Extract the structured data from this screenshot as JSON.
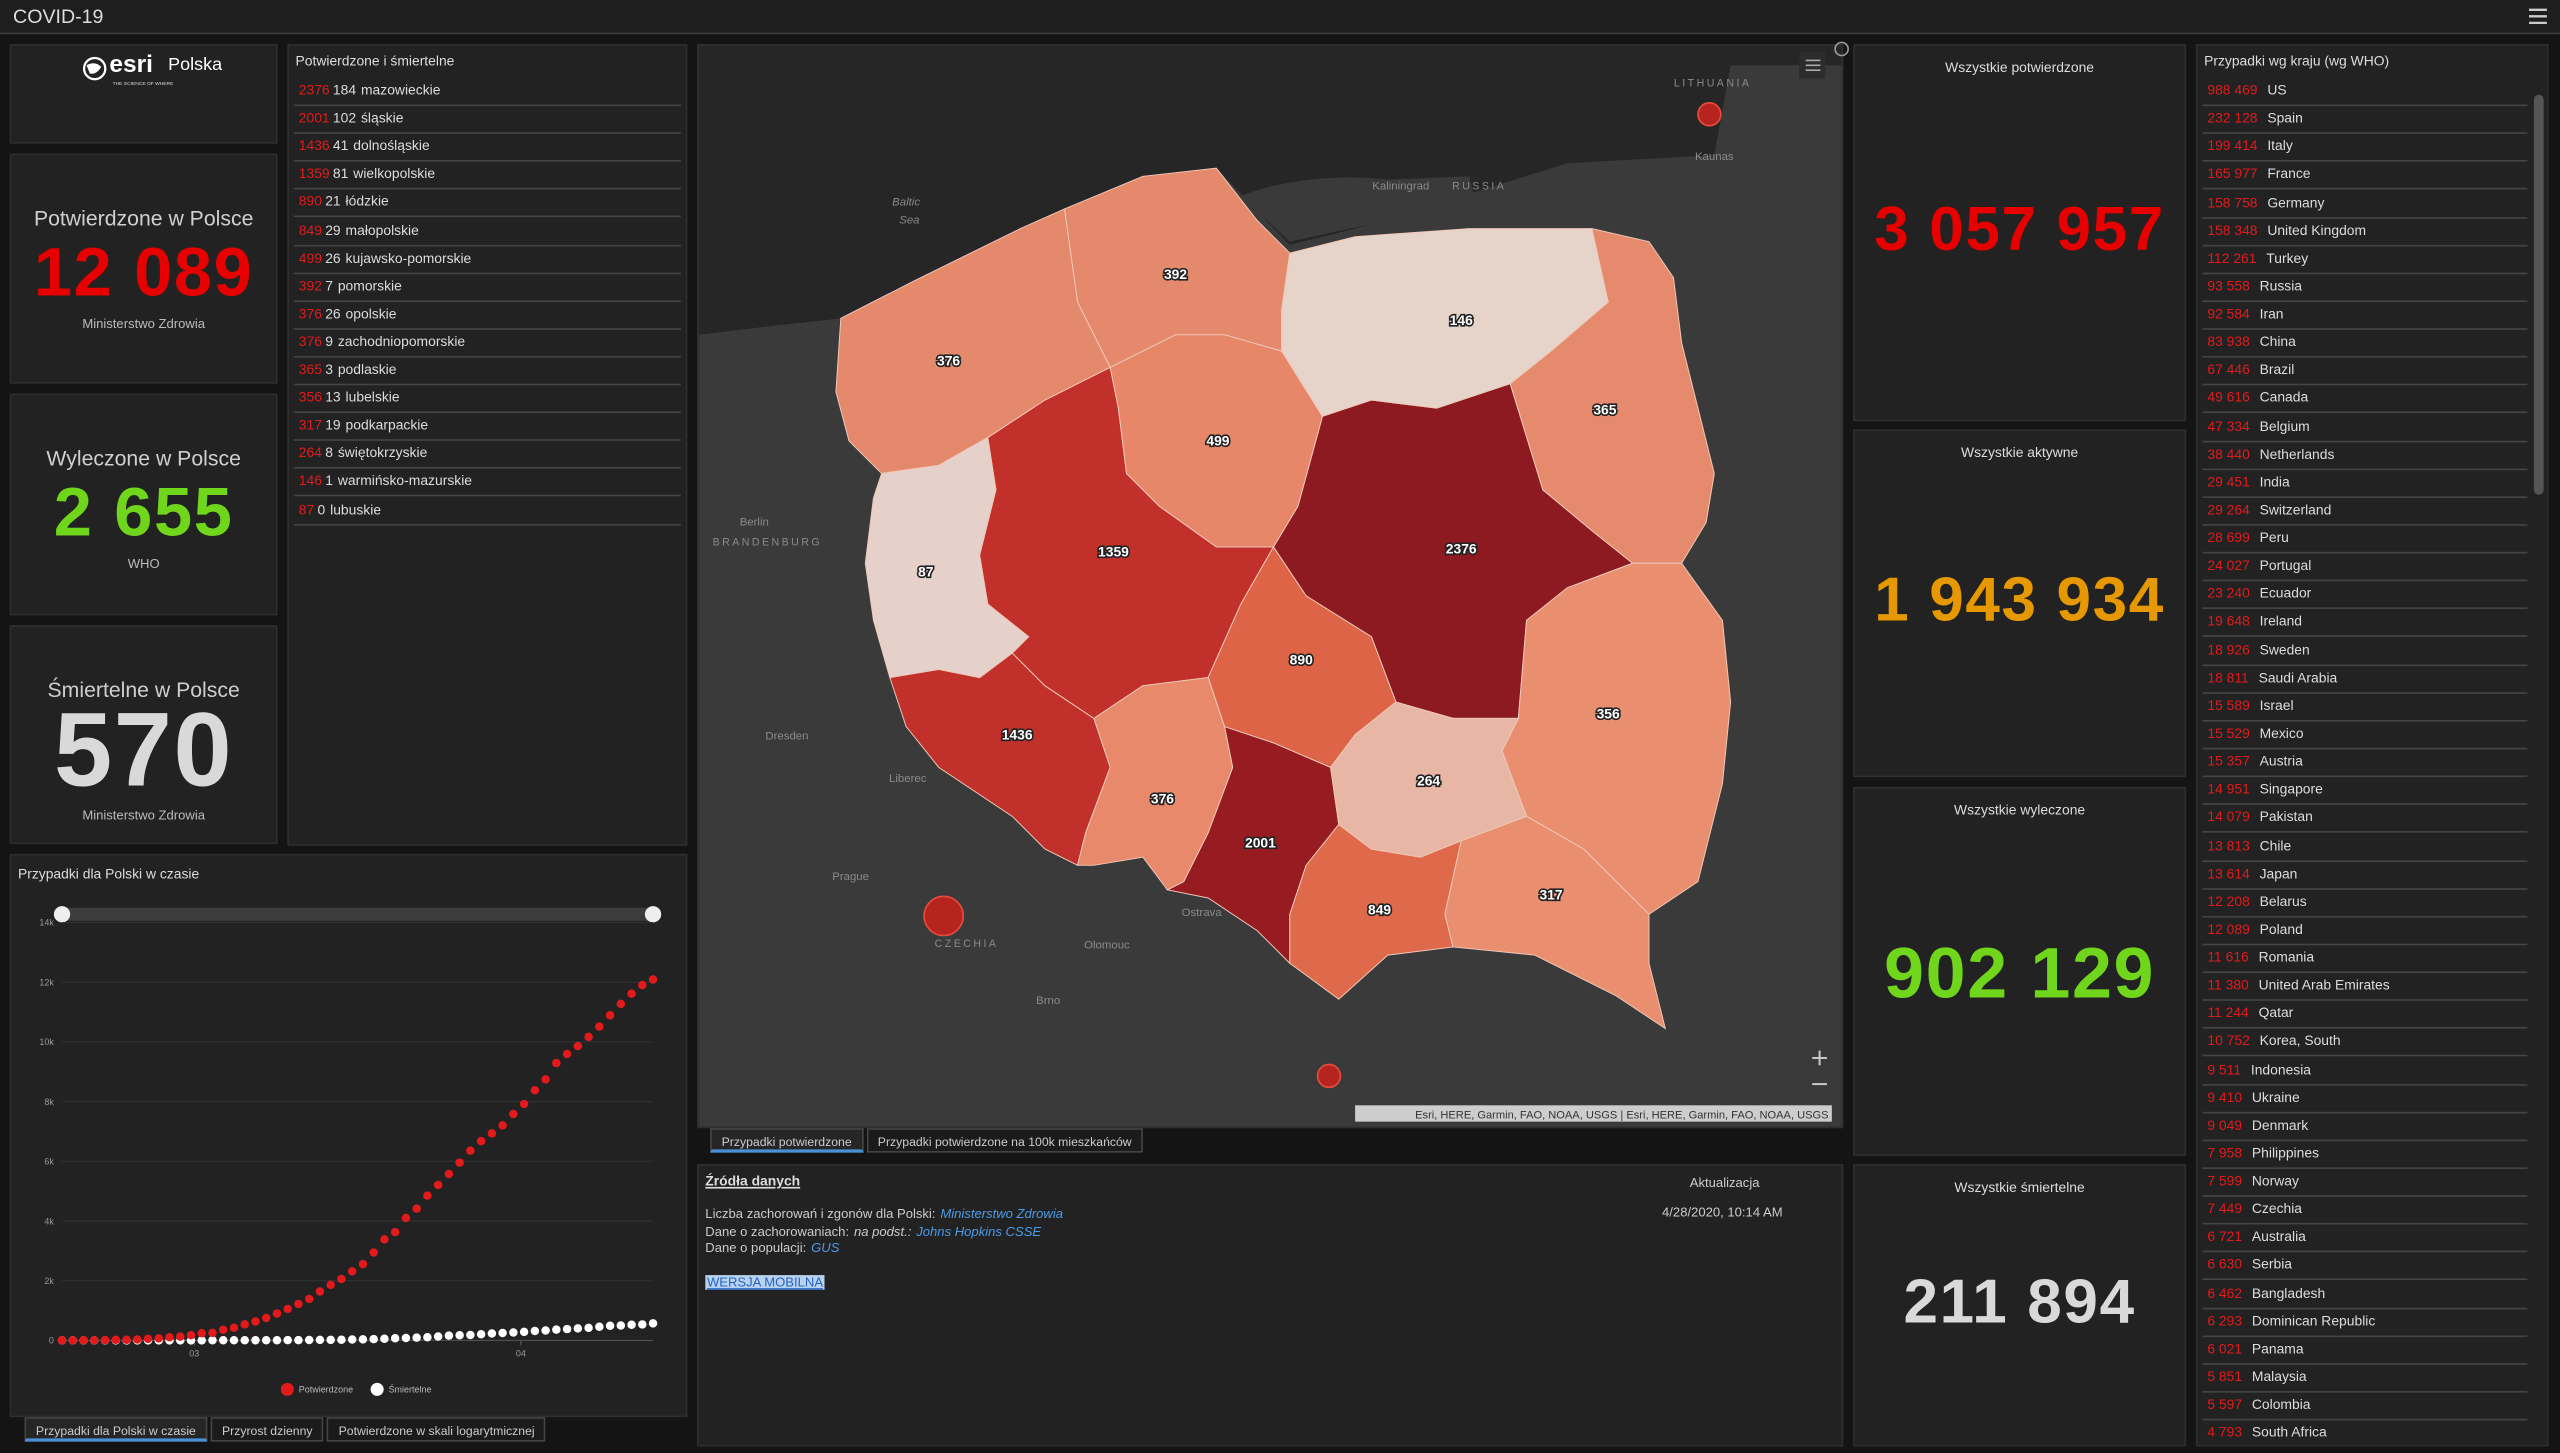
{
  "header": {
    "title": "COVID-19"
  },
  "logo": {
    "brand": "esri",
    "country": "Polska",
    "tagline": "THE SCIENCE OF WHERE"
  },
  "poland_counters": [
    {
      "title": "Potwierdzone w Polsce",
      "value": "12 089",
      "source": "Ministerstwo Zdrowia",
      "color": "#e60000"
    },
    {
      "title": "Wyleczone w Polsce",
      "value": "2 655",
      "source": "WHO",
      "color": "#70d61c"
    },
    {
      "title": "Śmiertelne w Polsce",
      "value": "570",
      "source": "Ministerstwo Zdrowia",
      "color": "#d9d9d9"
    }
  ],
  "regions_list": {
    "title": "Potwierdzone i śmiertelne",
    "rows": [
      {
        "confirmed": 2376,
        "deaths": 184,
        "name": "mazowieckie"
      },
      {
        "confirmed": 2001,
        "deaths": 102,
        "name": "śląskie"
      },
      {
        "confirmed": 1436,
        "deaths": 41,
        "name": "dolnośląskie"
      },
      {
        "confirmed": 1359,
        "deaths": 81,
        "name": "wielkopolskie"
      },
      {
        "confirmed": 890,
        "deaths": 21,
        "name": "łódzkie"
      },
      {
        "confirmed": 849,
        "deaths": 29,
        "name": "małopolskie"
      },
      {
        "confirmed": 499,
        "deaths": 26,
        "name": "kujawsko-pomorskie"
      },
      {
        "confirmed": 392,
        "deaths": 7,
        "name": "pomorskie"
      },
      {
        "confirmed": 376,
        "deaths": 26,
        "name": "opolskie"
      },
      {
        "confirmed": 376,
        "deaths": 9,
        "name": "zachodniopomorskie"
      },
      {
        "confirmed": 365,
        "deaths": 3,
        "name": "podlaskie"
      },
      {
        "confirmed": 356,
        "deaths": 13,
        "name": "lubelskie"
      },
      {
        "confirmed": 317,
        "deaths": 19,
        "name": "podkarpackie"
      },
      {
        "confirmed": 264,
        "deaths": 8,
        "name": "świętokrzyskie"
      },
      {
        "confirmed": 146,
        "deaths": 1,
        "name": "warmińsko-mazurskie"
      },
      {
        "confirmed": 87,
        "deaths": 0,
        "name": "lubuskie"
      }
    ]
  },
  "map": {
    "regions": [
      {
        "label": 2376,
        "color": "#8c1a20"
      },
      {
        "label": 2001,
        "color": "#961c22"
      },
      {
        "label": 1436,
        "color": "#c1302b"
      },
      {
        "label": 1359,
        "color": "#c1302b"
      },
      {
        "label": 890,
        "color": "#dd6447"
      },
      {
        "label": 849,
        "color": "#df6a4b"
      },
      {
        "label": 499,
        "color": "#e8866a"
      },
      {
        "label": 392,
        "color": "#e5896c"
      },
      {
        "label": 376,
        "color": "#e8896b"
      },
      {
        "label": 376,
        "color": "#e5896c"
      },
      {
        "label": 365,
        "color": "#e68a6d"
      },
      {
        "label": 356,
        "color": "#e98f70"
      },
      {
        "label": 317,
        "color": "#e98f70"
      },
      {
        "label": 264,
        "color": "#e8b6a4"
      },
      {
        "label": 146,
        "color": "#e6d3ca"
      },
      {
        "label": 87,
        "color": "#e6d1ca"
      }
    ],
    "places": [
      "LITHUANIA",
      "Kaliningrad",
      "RUSSIA",
      "Kaunas",
      "Baltic",
      "Sea",
      "Berlin",
      "BRANDENBURG",
      "Dresden",
      "Liberec",
      "Prague",
      "CZECHIA",
      "Olomouc",
      "Ostrava",
      "Brno"
    ],
    "attribution": "Esri, HERE, Garmin, FAO, NOAA, USGS | Esri, HERE, Garmin, FAO, NOAA, USGS",
    "tabs": [
      "Przypadki potwierdzone",
      "Przypadki potwierdzone na 100k mieszkańców"
    ]
  },
  "time_chart": {
    "type": "line",
    "title": "Przypadki dla Polski w czasie",
    "series": [
      {
        "name": "Potwierdzone",
        "color": "#e31a1c",
        "values": [
          1,
          1,
          5,
          6,
          11,
          17,
          22,
          31,
          51,
          68,
          104,
          125,
          177,
          238,
          251,
          355,
          425,
          536,
          634,
          749,
          901,
          1051,
          1221,
          1389,
          1638,
          1862,
          2055,
          2311,
          2554,
          2946,
          3383,
          3627,
          4102,
          4413,
          4848,
          5205,
          5575,
          5955,
          6356,
          6674,
          6934,
          7202,
          7582,
          7918,
          8379,
          8742,
          9287,
          9593,
          9856,
          10169,
          10511,
          10892,
          11273,
          11617,
          11902,
          12089
        ]
      },
      {
        "name": "Śmiertelne",
        "color": "#ffffff",
        "values": [
          0,
          0,
          0,
          0,
          0,
          0,
          0,
          0,
          0,
          0,
          1,
          2,
          3,
          3,
          5,
          5,
          5,
          5,
          5,
          5,
          7,
          8,
          10,
          14,
          16,
          17,
          23,
          31,
          33,
          43,
          57,
          71,
          79,
          94,
          107,
          129,
          159,
          174,
          181,
          208,
          232,
          249,
          263,
          286,
          314,
          332,
          360,
          380,
          404,
          421,
          456,
          490,
          499,
          524,
          535,
          570
        ]
      }
    ],
    "xlim": [
      0,
      55
    ],
    "xticks": [
      {
        "value": 12.3,
        "label": "03"
      },
      {
        "value": 42.7,
        "label": "04"
      }
    ],
    "ylim": [
      0,
      14000
    ],
    "yticks": [
      0,
      {
        "value": 2000,
        "label": "2k"
      },
      {
        "value": 4000,
        "label": "4k"
      },
      {
        "value": 6000,
        "label": "6k"
      },
      {
        "value": 8000,
        "label": "8k"
      },
      {
        "value": 10000,
        "label": "10k"
      },
      {
        "value": 12000,
        "label": "12k"
      },
      {
        "value": 14000,
        "label": "14k"
      }
    ],
    "grid": true,
    "tabs": [
      "Przypadki dla Polski w czasie",
      "Przyrost dzienny",
      "Potwierdzone w skali logarytmicznej"
    ]
  },
  "sources": {
    "title": "Źródła danych",
    "update_label": "Aktualizacja",
    "update_date": "4/28/2020, 10:14 AM",
    "lines": [
      [
        {
          "text": "Liczba zachorowań i zgonów dla Polski:"
        },
        {
          "text": "Ministerstwo Zdrowia",
          "link": true
        }
      ],
      [
        {
          "text": "Dane o zachorowaniach:"
        },
        {
          "text": "na podst.:",
          "italic": true
        },
        {
          "text": "Johns Hopkins CSSE",
          "link": true
        }
      ],
      [
        {
          "text": "Dane o populacji:"
        },
        {
          "text": "GUS",
          "link": true
        }
      ]
    ],
    "mobile": "WERSJA MOBILNA"
  },
  "totals": [
    {
      "title": "Wszystkie potwierdzone",
      "value": "3 057 957",
      "color": "#e60000"
    },
    {
      "title": "Wszystkie aktywne",
      "value": "1 943 934",
      "color": "#e69800"
    },
    {
      "title": "Wszystkie wyleczone",
      "value": "902 129",
      "color": "#70d61c"
    },
    {
      "title": "Wszystkie śmiertelne",
      "value": "211 894",
      "color": "#d9d9d9"
    }
  ],
  "countries": {
    "title": "Przypadki wg kraju (wg WHO)",
    "rows": [
      {
        "count": "988 469",
        "name": "US"
      },
      {
        "count": "232 128",
        "name": "Spain"
      },
      {
        "count": "199 414",
        "name": "Italy"
      },
      {
        "count": "165 977",
        "name": "France"
      },
      {
        "count": "158 758",
        "name": "Germany"
      },
      {
        "count": "158 348",
        "name": "United Kingdom"
      },
      {
        "count": "112 261",
        "name": "Turkey"
      },
      {
        "count": "93 558",
        "name": "Russia"
      },
      {
        "count": "92 584",
        "name": "Iran"
      },
      {
        "count": "83 938",
        "name": "China"
      },
      {
        "count": "67 446",
        "name": "Brazil"
      },
      {
        "count": "49 616",
        "name": "Canada"
      },
      {
        "count": "47 334",
        "name": "Belgium"
      },
      {
        "count": "38 440",
        "name": "Netherlands"
      },
      {
        "count": "29 451",
        "name": "India"
      },
      {
        "count": "29 264",
        "name": "Switzerland"
      },
      {
        "count": "28 699",
        "name": "Peru"
      },
      {
        "count": "24 027",
        "name": "Portugal"
      },
      {
        "count": "23 240",
        "name": "Ecuador"
      },
      {
        "count": "19 648",
        "name": "Ireland"
      },
      {
        "count": "18 926",
        "name": "Sweden"
      },
      {
        "count": "18 811",
        "name": "Saudi Arabia"
      },
      {
        "count": "15 589",
        "name": "Israel"
      },
      {
        "count": "15 529",
        "name": "Mexico"
      },
      {
        "count": "15 357",
        "name": "Austria"
      },
      {
        "count": "14 951",
        "name": "Singapore"
      },
      {
        "count": "14 079",
        "name": "Pakistan"
      },
      {
        "count": "13 813",
        "name": "Chile"
      },
      {
        "count": "13 614",
        "name": "Japan"
      },
      {
        "count": "12 208",
        "name": "Belarus"
      },
      {
        "count": "12 089",
        "name": "Poland"
      },
      {
        "count": "11 616",
        "name": "Romania"
      },
      {
        "count": "11 380",
        "name": "United Arab Emirates"
      },
      {
        "count": "11 244",
        "name": "Qatar"
      },
      {
        "count": "10 752",
        "name": "Korea, South"
      },
      {
        "count": "9 511",
        "name": "Indonesia"
      },
      {
        "count": "9 410",
        "name": "Ukraine"
      },
      {
        "count": "9 049",
        "name": "Denmark"
      },
      {
        "count": "7 958",
        "name": "Philippines"
      },
      {
        "count": "7 599",
        "name": "Norway"
      },
      {
        "count": "7 449",
        "name": "Czechia"
      },
      {
        "count": "6 721",
        "name": "Australia"
      },
      {
        "count": "6 630",
        "name": "Serbia"
      },
      {
        "count": "6 462",
        "name": "Bangladesh"
      },
      {
        "count": "6 293",
        "name": "Dominican Republic"
      },
      {
        "count": "6 021",
        "name": "Panama"
      },
      {
        "count": "5 851",
        "name": "Malaysia"
      },
      {
        "count": "5 597",
        "name": "Colombia"
      },
      {
        "count": "4 793",
        "name": "South Africa"
      }
    ]
  }
}
